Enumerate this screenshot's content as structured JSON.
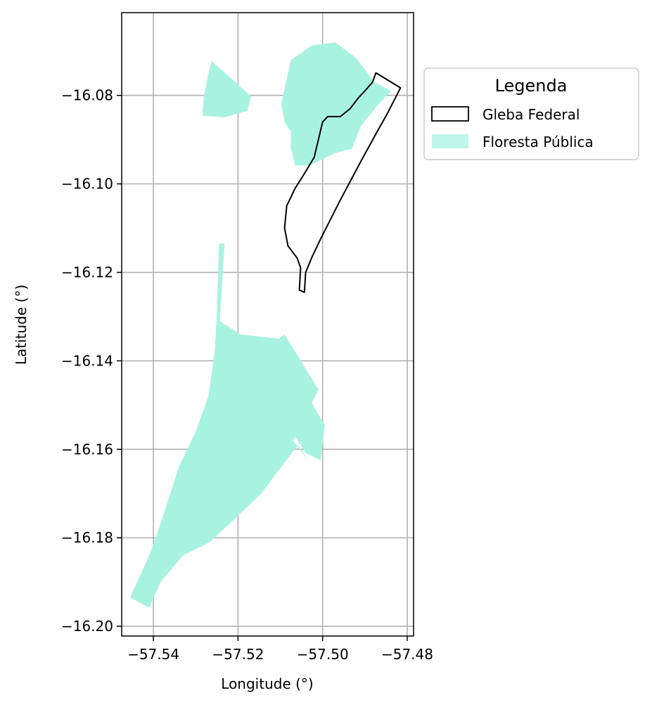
{
  "chart_data": {
    "type": "map",
    "xlabel": "Longitude (°)",
    "ylabel": "Latitude (°)",
    "xlim": [
      -57.5475,
      -57.4785
    ],
    "ylim": [
      -16.2022,
      -16.0613
    ],
    "x_ticks": [
      -57.54,
      -57.52,
      -57.5,
      -57.48
    ],
    "y_ticks": [
      -16.08,
      -16.1,
      -16.12,
      -16.14,
      -16.16,
      -16.18,
      -16.2
    ],
    "x_tick_labels": [
      "−57.54",
      "−57.52",
      "−57.50",
      "−57.48"
    ],
    "y_tick_labels": [
      "−16.08",
      "−16.10",
      "−16.12",
      "−16.14",
      "−16.16",
      "−16.18",
      "−16.20"
    ],
    "grid": true,
    "legend": {
      "title": "Legenda",
      "placement": "outside-top-right",
      "entries": [
        {
          "label": "Gleba Federal",
          "style": "outline",
          "color": "#000000"
        },
        {
          "label": "Floresta Pública",
          "style": "fill",
          "color": "#a7f3e0"
        }
      ]
    },
    "layers": [
      {
        "name": "Floresta Pública",
        "fill": "#a7f3e0",
        "polygons": [
          [
            [
              -57.5263,
              -16.0722
            ],
            [
              -57.5197,
              -16.0778
            ],
            [
              -57.5169,
              -16.0802
            ],
            [
              -57.5178,
              -16.0835
            ],
            [
              -57.5231,
              -16.0849
            ],
            [
              -57.5284,
              -16.0846
            ],
            [
              -57.5281,
              -16.0801
            ]
          ],
          [
            [
              -57.497,
              -16.068
            ],
            [
              -57.492,
              -16.0716
            ],
            [
              -57.4878,
              -16.077
            ],
            [
              -57.4838,
              -16.079
            ],
            [
              -57.4868,
              -16.082
            ],
            [
              -57.491,
              -16.087
            ],
            [
              -57.493,
              -16.092
            ],
            [
              -57.497,
              -16.093
            ],
            [
              -57.503,
              -16.0958
            ],
            [
              -57.5065,
              -16.0958
            ],
            [
              -57.5075,
              -16.092
            ],
            [
              -57.5075,
              -16.0882
            ],
            [
              -57.509,
              -16.086
            ],
            [
              -57.5098,
              -16.082
            ],
            [
              -57.5075,
              -16.072
            ],
            [
              -57.5025,
              -16.0687
            ]
          ],
          [
            [
              -57.5245,
              -16.1135
            ],
            [
              -57.5232,
              -16.1135
            ],
            [
              -57.5243,
              -16.131
            ],
            [
              -57.5195,
              -16.134
            ],
            [
              -57.5103,
              -16.135
            ],
            [
              -57.509,
              -16.134
            ],
            [
              -57.501,
              -16.1465
            ],
            [
              -57.507,
              -16.158
            ],
            [
              -57.503,
              -16.163
            ],
            [
              -57.5058,
              -16.159
            ],
            [
              -57.5098,
              -16.164
            ],
            [
              -57.5145,
              -16.17
            ],
            [
              -57.5222,
              -16.177
            ],
            [
              -57.5267,
              -16.181
            ],
            [
              -57.533,
              -16.184
            ],
            [
              -57.5383,
              -16.19
            ],
            [
              -57.541,
              -16.1958
            ],
            [
              -57.5455,
              -16.1935
            ],
            [
              -57.541,
              -16.184
            ],
            [
              -57.538,
              -16.176
            ],
            [
              -57.534,
              -16.164
            ],
            [
              -57.53,
              -16.156
            ],
            [
              -57.527,
              -16.148
            ],
            [
              -57.5255,
              -16.138
            ],
            [
              -57.525,
              -16.13
            ]
          ],
          [
            [
              -57.512,
              -16.135
            ],
            [
              -57.506,
              -16.144
            ],
            [
              -57.4995,
              -16.1545
            ],
            [
              -57.5005,
              -16.1625
            ],
            [
              -57.504,
              -16.1608
            ],
            [
              -57.508,
              -16.155
            ],
            [
              -57.5118,
              -16.147
            ]
          ]
        ]
      },
      {
        "name": "Gleba Federal",
        "stroke": "#000000",
        "polygons": [
          [
            [
              -57.4874,
              -16.0749
            ],
            [
              -57.4816,
              -16.0783
            ],
            [
              -57.4848,
              -16.0843
            ],
            [
              -57.487,
              -16.088
            ],
            [
              -57.491,
              -16.095
            ],
            [
              -57.496,
              -16.104
            ],
            [
              -57.5005,
              -16.1125
            ],
            [
              -57.5025,
              -16.1165
            ],
            [
              -57.504,
              -16.12
            ],
            [
              -57.5043,
              -16.1245
            ],
            [
              -57.5055,
              -16.124
            ],
            [
              -57.5052,
              -16.119
            ],
            [
              -57.506,
              -16.1168
            ],
            [
              -57.5082,
              -16.114
            ],
            [
              -57.509,
              -16.11
            ],
            [
              -57.5085,
              -16.105
            ],
            [
              -57.5065,
              -16.101
            ],
            [
              -57.5045,
              -16.098
            ],
            [
              -57.502,
              -16.094
            ],
            [
              -57.501,
              -16.09
            ],
            [
              -57.5,
              -16.086
            ],
            [
              -57.4988,
              -16.0848
            ],
            [
              -57.4958,
              -16.0848
            ],
            [
              -57.4935,
              -16.083
            ],
            [
              -57.4915,
              -16.0805
            ],
            [
              -57.49,
              -16.079
            ],
            [
              -57.4882,
              -16.077
            ]
          ]
        ]
      }
    ]
  }
}
